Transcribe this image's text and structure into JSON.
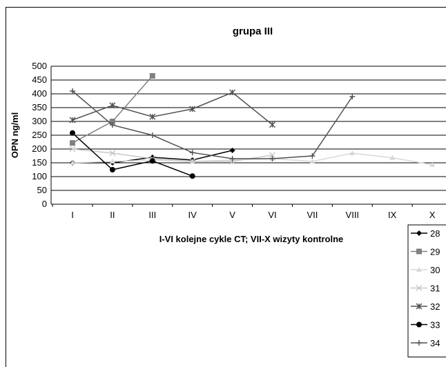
{
  "chart_data": {
    "type": "line",
    "title": "grupa III",
    "xlabel": "I-VI kolejne cykle CT; VII-X wizyty kontrolne",
    "ylabel": "OPN ng/ml",
    "categories": [
      "I",
      "II",
      "III",
      "IV",
      "V",
      "VI",
      "VII",
      "VIII",
      "IX",
      "X"
    ],
    "ylim": [
      0,
      500
    ],
    "yticks": [
      0,
      50,
      100,
      150,
      200,
      250,
      300,
      350,
      400,
      450,
      500
    ],
    "grid": true,
    "legend_position": "right",
    "series": [
      {
        "name": "28",
        "color": "#000000",
        "marker": "diamond",
        "values": [
          150,
          150,
          170,
          160,
          195,
          null,
          null,
          null,
          null,
          null
        ]
      },
      {
        "name": "29",
        "color": "#808080",
        "marker": "square",
        "values": [
          222,
          300,
          465,
          null,
          null,
          null,
          null,
          null,
          null,
          null
        ]
      },
      {
        "name": "30",
        "color": "#d8d8d8",
        "marker": "triangle",
        "values": [
          150,
          155,
          160,
          155,
          160,
          165,
          155,
          185,
          168,
          143
        ]
      },
      {
        "name": "31",
        "color": "#c8c8c8",
        "marker": "x",
        "values": [
          200,
          185,
          165,
          155,
          155,
          178,
          null,
          null,
          null,
          null
        ]
      },
      {
        "name": "32",
        "color": "#505050",
        "marker": "star",
        "values": [
          305,
          358,
          317,
          345,
          405,
          288,
          null,
          null,
          null,
          null
        ]
      },
      {
        "name": "33",
        "color": "#000000",
        "marker": "circle",
        "values": [
          258,
          125,
          157,
          102,
          null,
          null,
          null,
          null,
          null,
          null
        ]
      },
      {
        "name": "34",
        "color": "#505050",
        "marker": "plus",
        "values": [
          410,
          287,
          250,
          187,
          165,
          165,
          175,
          390,
          null,
          null
        ]
      }
    ]
  }
}
